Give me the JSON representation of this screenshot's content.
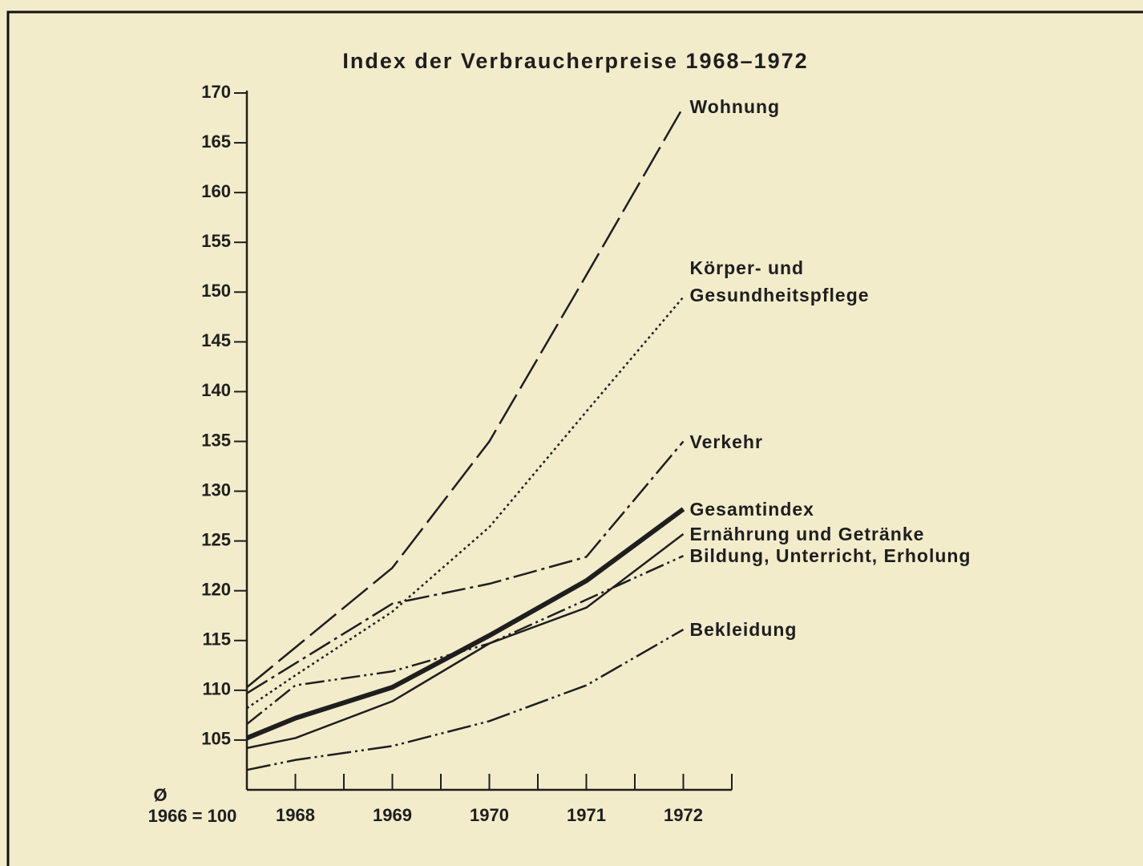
{
  "chart_data": {
    "type": "line",
    "title": "Index der Verbraucherpreise 1968–1972",
    "origin_note": [
      "Ø",
      "1966 = 100"
    ],
    "x": [
      1967.5,
      1968,
      1969,
      1970,
      1971,
      1972
    ],
    "xlim": [
      1967.5,
      1972.5
    ],
    "xticks": [
      1968,
      1969,
      1970,
      1971,
      1972
    ],
    "xminor_ticks": [
      1968.5,
      1969.5,
      1970.5,
      1971.5,
      1972.5
    ],
    "ylim": [
      100,
      170
    ],
    "yticks": [
      105,
      110,
      115,
      120,
      125,
      130,
      135,
      140,
      145,
      150,
      155,
      160,
      165,
      170
    ],
    "grid": false,
    "series": [
      {
        "name": "Wohnung",
        "color": "#1e1e1e",
        "dash": "42 9",
        "width": 2.5,
        "values": [
          110.3,
          114.3,
          122.3,
          135,
          151.7,
          168.6
        ]
      },
      {
        "name": "Körper- und Gesundheitspflege",
        "color": "#1e1e1e",
        "dash": "3 4",
        "width": 2.5,
        "values": [
          108.2,
          111.5,
          117.9,
          126.4,
          138,
          149.5
        ]
      },
      {
        "name": "Verkehr",
        "color": "#1e1e1e",
        "dash": "30 6 4 6",
        "width": 2.5,
        "values": [
          109.7,
          112.7,
          118.7,
          120.7,
          123.4,
          135
        ]
      },
      {
        "name": "Gesamtindex",
        "color": "#1e1e1e",
        "dash": "none",
        "width": 6,
        "values": [
          105.2,
          107.2,
          110.3,
          115.5,
          121,
          128.2
        ]
      },
      {
        "name": "Ernährung und Getränke",
        "color": "#1e1e1e",
        "dash": "none",
        "width": 2.5,
        "values": [
          104.2,
          105.2,
          108.9,
          114.7,
          118.3,
          125.7
        ]
      },
      {
        "name": "Bildung, Unterricht, Erholung",
        "color": "#1e1e1e",
        "dash": "24 5 3 5 3 5",
        "width": 2.5,
        "values": [
          106.6,
          110.5,
          111.9,
          114.7,
          119.1,
          123.5
        ]
      },
      {
        "name": "Bekleidung",
        "color": "#1e1e1e",
        "dash": "30 5 3 5 3 5",
        "width": 2.5,
        "values": [
          102,
          103,
          104.4,
          106.9,
          110.5,
          116.1
        ]
      }
    ]
  }
}
